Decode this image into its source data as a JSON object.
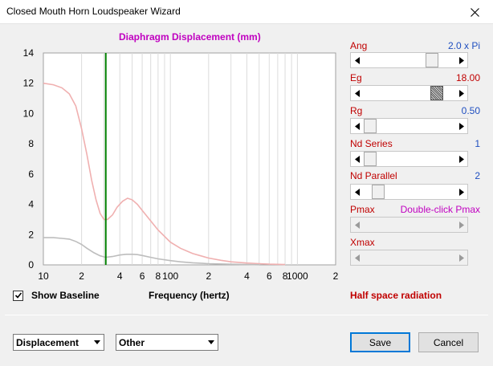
{
  "window": {
    "title": "Closed Mouth Horn Loudspeaker Wizard"
  },
  "chart_data": {
    "type": "line",
    "title": "Diaphragm Displacement (mm)",
    "xlabel": "Frequency (hertz)",
    "ylabel": "",
    "xscale": "log",
    "xlim": [
      10,
      2000
    ],
    "ylim": [
      0,
      14
    ],
    "yticks": [
      0,
      2,
      4,
      6,
      8,
      10,
      12,
      14
    ],
    "xtick_labels": [
      {
        "x": 10,
        "label": "10"
      },
      {
        "x": 20,
        "label": "2"
      },
      {
        "x": 40,
        "label": "4"
      },
      {
        "x": 60,
        "label": "6"
      },
      {
        "x": 80,
        "label": "8"
      },
      {
        "x": 100,
        "label": "100"
      },
      {
        "x": 200,
        "label": "2"
      },
      {
        "x": 400,
        "label": "4"
      },
      {
        "x": 600,
        "label": "6"
      },
      {
        "x": 800,
        "label": "8"
      },
      {
        "x": 1000,
        "label": "1000"
      },
      {
        "x": 2000,
        "label": "2"
      }
    ],
    "grid": true,
    "marker_x": 31,
    "series": [
      {
        "color": "#f0b0b0",
        "x": [
          10,
          12,
          14,
          16,
          18,
          20,
          22,
          24,
          26,
          28,
          30,
          32,
          35,
          38,
          42,
          46,
          50,
          55,
          60,
          70,
          80,
          100,
          120,
          150,
          200,
          250,
          300,
          400,
          500,
          600,
          800
        ],
        "y": [
          12.0,
          11.9,
          11.7,
          11.3,
          10.5,
          9.0,
          7.3,
          5.6,
          4.3,
          3.4,
          3.0,
          3.0,
          3.3,
          3.8,
          4.2,
          4.4,
          4.3,
          4.0,
          3.6,
          2.9,
          2.3,
          1.5,
          1.1,
          0.75,
          0.45,
          0.3,
          0.2,
          0.12,
          0.08,
          0.05,
          0.02
        ]
      },
      {
        "color": "#bdbdbd",
        "x": [
          10,
          12,
          14,
          16,
          18,
          20,
          22,
          25,
          28,
          31,
          35,
          40,
          45,
          50,
          55,
          60,
          70,
          80,
          100,
          120,
          150,
          200,
          300,
          500
        ],
        "y": [
          1.8,
          1.8,
          1.75,
          1.7,
          1.55,
          1.35,
          1.1,
          0.8,
          0.6,
          0.5,
          0.55,
          0.65,
          0.7,
          0.7,
          0.68,
          0.62,
          0.5,
          0.4,
          0.28,
          0.2,
          0.14,
          0.08,
          0.04,
          0.01
        ]
      }
    ]
  },
  "show_baseline": {
    "label": "Show Baseline",
    "checked": true
  },
  "params": {
    "ang": {
      "label": "Ang",
      "value": "2.0 x Pi",
      "thumb": 0.79
    },
    "eg": {
      "label": "Eg",
      "value": "18.00",
      "thumb": 0.86
    },
    "rg": {
      "label": "Rg",
      "value": "0.50",
      "thumb": 0.0
    },
    "nd_series": {
      "label": "Nd  Series",
      "value": "1",
      "thumb": 0.0
    },
    "nd_parallel": {
      "label": "Nd  Parallel",
      "value": "2",
      "thumb": 0.1
    },
    "pmax": {
      "label": "Pmax",
      "value": "Double-click Pmax"
    },
    "xmax": {
      "label": "Xmax"
    }
  },
  "status": {
    "radiation": "Half space radiation"
  },
  "selects": {
    "plot": "Displacement",
    "other": "Other"
  },
  "buttons": {
    "save": "Save",
    "cancel": "Cancel"
  },
  "colors": {
    "marker": "#008000",
    "label_red": "#c00000",
    "value_blue": "#1f4fc0",
    "title_magenta": "#c000c0"
  }
}
